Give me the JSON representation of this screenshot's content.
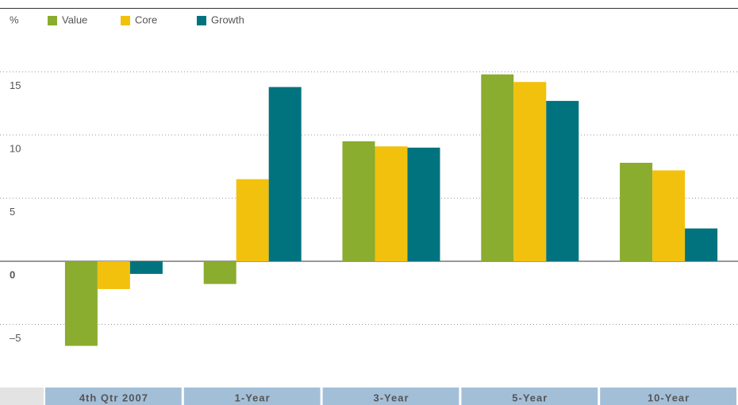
{
  "chart_data": {
    "type": "bar",
    "categories": [
      "4th Qtr 2007",
      "1-Year",
      "3-Year",
      "5-Year",
      "10-Year"
    ],
    "series": [
      {
        "name": "Value",
        "color": "#8aac2f",
        "values": [
          -6.7,
          -1.8,
          9.5,
          14.8,
          7.8
        ]
      },
      {
        "name": "Core",
        "color": "#f2c10e",
        "values": [
          -2.2,
          6.5,
          9.1,
          14.2,
          7.2
        ]
      },
      {
        "name": "Growth",
        "color": "#00737f",
        "values": [
          -1.0,
          13.8,
          9.0,
          12.7,
          2.6
        ]
      }
    ],
    "ylabel": "%",
    "ylim": [
      -10,
      20
    ],
    "yticks": [
      {
        "value": -5,
        "label": "–5"
      },
      0,
      5,
      10,
      15
    ],
    "grid": true,
    "legend": "top-left"
  }
}
